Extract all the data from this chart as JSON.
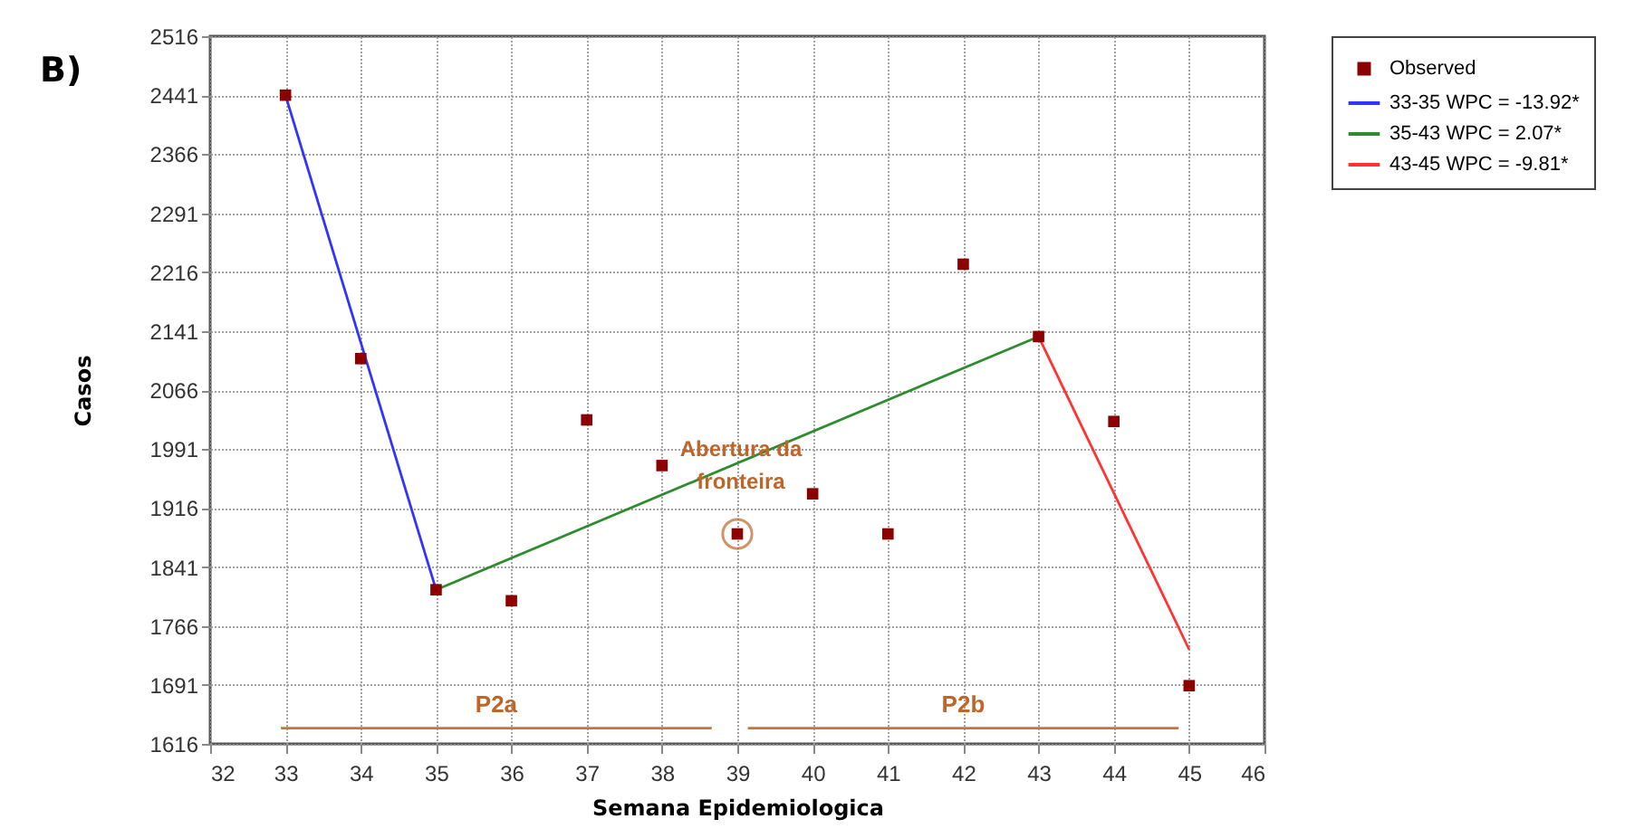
{
  "chart_data": {
    "type": "scatter",
    "xlabel": "Semana Epidemiologica",
    "ylabel": "Casos",
    "xlim": [
      32,
      46
    ],
    "xticks": [
      32,
      33,
      34,
      35,
      36,
      37,
      38,
      39,
      40,
      41,
      42,
      43,
      44,
      45,
      46
    ],
    "ylim": [
      1616,
      2516
    ],
    "yticks": [
      1616,
      1691,
      1766,
      1841,
      1916,
      1991,
      2066,
      2141,
      2216,
      2291,
      2366,
      2441,
      2516
    ],
    "grid": true,
    "legend": "top right",
    "marker": "square",
    "series": [
      {
        "name": "Observed",
        "color": "#8b0000",
        "x": [
          33,
          34,
          35,
          36,
          37,
          38,
          39,
          40,
          41,
          42,
          43,
          44,
          45
        ],
        "values": [
          2441,
          2106,
          1812,
          1798,
          2028,
          1970,
          1883,
          1934,
          1883,
          2226,
          2134,
          2026,
          1690
        ]
      },
      {
        "name": "33-35 WPC = -13.92*",
        "type": "line",
        "marker": "none",
        "line_style": "solid",
        "color": "#3333ff",
        "x": [
          33,
          35
        ],
        "values": [
          2441,
          1812
        ]
      },
      {
        "name": "35-43 WPC = 2.07*",
        "type": "line",
        "marker": "none",
        "line_style": "solid",
        "color": "#2e8b2e",
        "x": [
          35,
          43
        ],
        "values": [
          1812,
          2134
        ]
      },
      {
        "name": "43-45 WPC = -9.81*",
        "type": "line",
        "marker": "none",
        "line_style": "solid",
        "color": "#ff3333",
        "x": [
          43,
          45
        ],
        "values": [
          2134,
          1736
        ]
      },
      {
        "type": "line",
        "marker": "none",
        "line_style": "solid",
        "color": "#c8733c",
        "x": [
          32.94,
          38.66
        ],
        "values": [
          1636,
          1636
        ]
      },
      {
        "type": "line",
        "marker": "none",
        "line_style": "solid",
        "color": "#c8733c",
        "x": [
          39.14,
          44.86
        ],
        "values": [
          1636,
          1636
        ]
      }
    ],
    "annotations": [
      "B)",
      {
        "text": "Abertura da\nfronteira",
        "x": 39,
        "y": 1883
      },
      {
        "text": "P2a",
        "x": 35.8,
        "y": 1636
      },
      {
        "text": "P2b",
        "x": 42,
        "y": 1636
      }
    ]
  }
}
